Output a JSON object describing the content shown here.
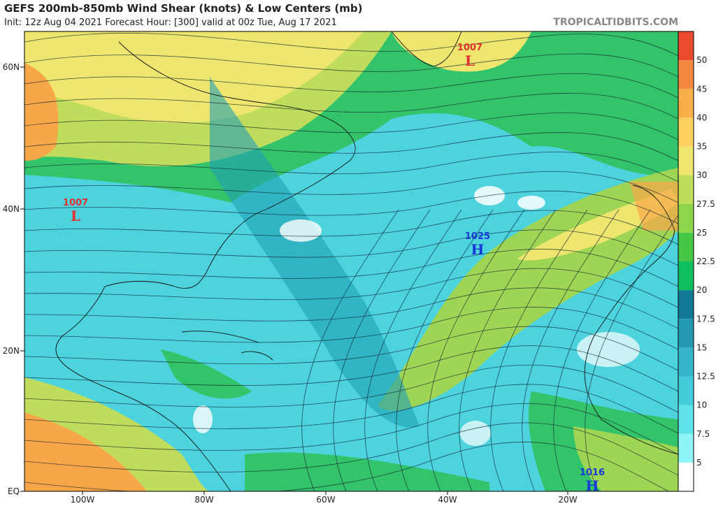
{
  "header": {
    "title": "GEFS 200mb-850mb Wind Shear (knots) & Low Centers (mb)",
    "subtitle": "Init: 12z Aug 04 2021   Forecast Hour: [300]   valid at 00z Tue, Aug 17 2021",
    "site": "TROPICALTIDBITS.COM"
  },
  "map": {
    "lat_labels": [
      "60N",
      "40N",
      "20N",
      "EQ"
    ],
    "lon_labels": [
      "100W",
      "80W",
      "60W",
      "40W",
      "20W"
    ],
    "centers": [
      {
        "value": 1007,
        "letter": "L",
        "color": "#e03030"
      },
      {
        "value": 1007,
        "letter": "L",
        "color": "#e03030"
      },
      {
        "value": 1025,
        "letter": "H",
        "color": "#1838d8"
      },
      {
        "value": 1016,
        "letter": "H",
        "color": "#1838d8"
      }
    ]
  },
  "colorbar": {
    "ticks": [
      5,
      7.5,
      10,
      12.5,
      15,
      17.5,
      20,
      22.5,
      25,
      27.5,
      30,
      35,
      40,
      45,
      50
    ],
    "colors": [
      "#ffffff",
      "#8ff4f6",
      "#5fe2ea",
      "#44ccda",
      "#36b5c8",
      "#2299b0",
      "#137a95",
      "#10c060",
      "#46c846",
      "#8ed54c",
      "#bedd58",
      "#eee66e",
      "#fdd060",
      "#fbae4c",
      "#f58840",
      "#ea4a2e"
    ]
  }
}
